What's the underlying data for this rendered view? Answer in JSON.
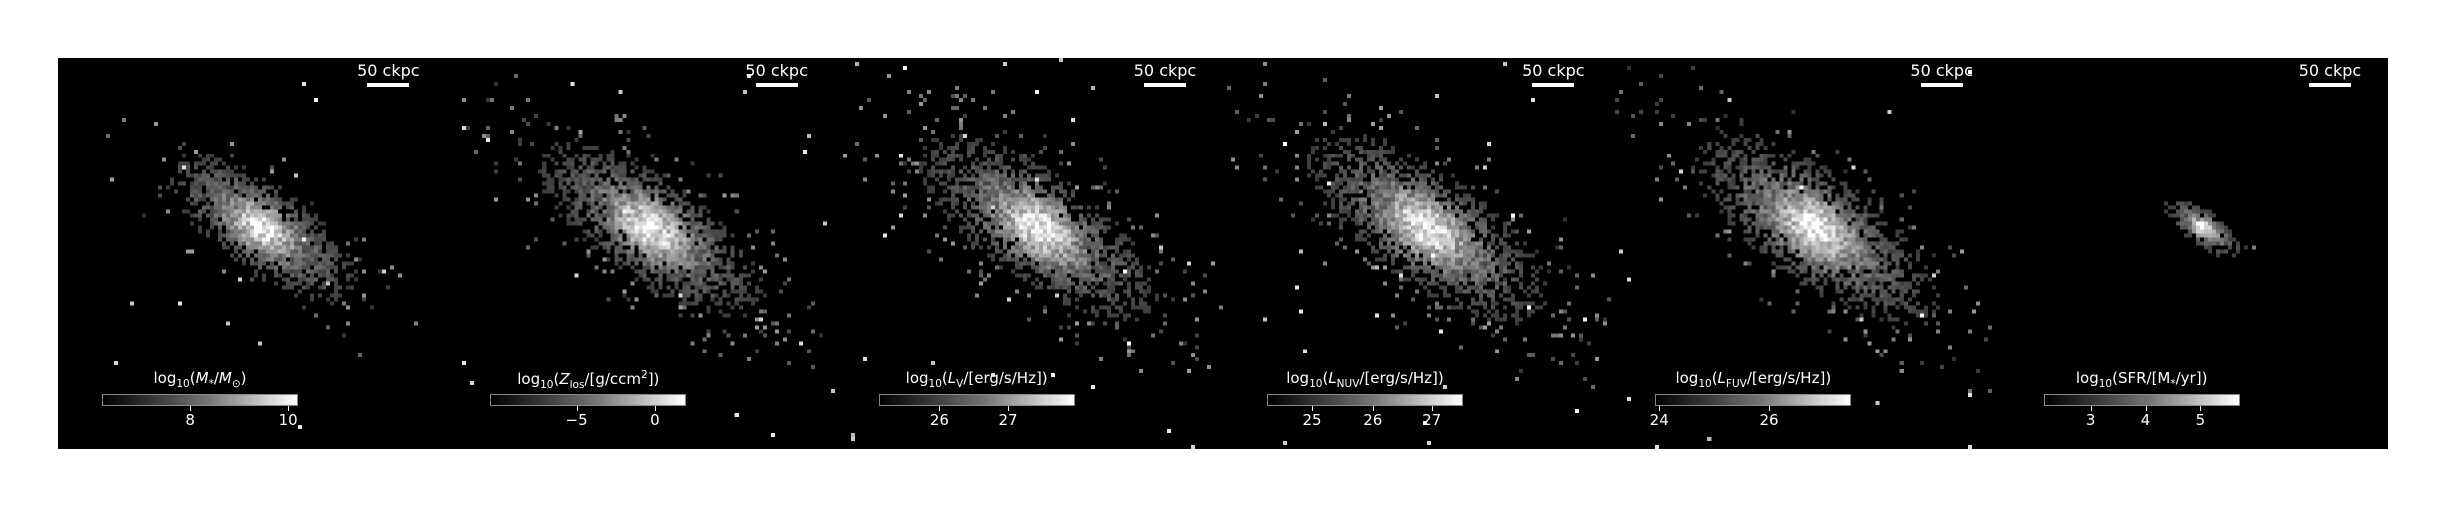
{
  "scale_bar_label": "50 ckpc",
  "panels": [
    {
      "id": "mstar",
      "label_html": "log<sub>10</sub>(<i>M</i><sub>*</sub>/<i>M</i><sub>⊙</sub>)",
      "ticks": [
        "8",
        "10"
      ],
      "tick_fracs": [
        0.45,
        0.95
      ],
      "blob_scale": 0.85,
      "noise_density": 0.45
    },
    {
      "id": "zlos",
      "label_html": "log<sub>10</sub>(<i>Z</i><sub>los</sub>/[g/ccm<sup>2</sup>])",
      "ticks": [
        "−5",
        "0"
      ],
      "tick_fracs": [
        0.44,
        0.84
      ],
      "blob_scale": 1.0,
      "noise_density": 0.75
    },
    {
      "id": "lv",
      "label_html": "log<sub>10</sub>(<i>L</i><sub>V</sub>/[erg/s/Hz])",
      "ticks": [
        "26",
        "27"
      ],
      "tick_fracs": [
        0.31,
        0.66
      ],
      "blob_scale": 1.05,
      "noise_density": 0.9
    },
    {
      "id": "lnuv",
      "label_html": "log<sub>10</sub>(<i>L</i><sub>NUV</sub>/[erg/s/Hz])",
      "ticks": [
        "25",
        "26",
        "27"
      ],
      "tick_fracs": [
        0.23,
        0.54,
        0.84
      ],
      "blob_scale": 1.08,
      "noise_density": 0.95
    },
    {
      "id": "lfuv",
      "label_html": "log<sub>10</sub>(<i>L</i><sub>FUV</sub>/[erg/s/Hz])",
      "ticks": [
        "24",
        "26"
      ],
      "tick_fracs": [
        0.02,
        0.58
      ],
      "blob_scale": 1.08,
      "noise_density": 0.95
    },
    {
      "id": "sfr",
      "label_html": "log<sub>10</sub>(SFR/[M<sub>*</sub>/yr])",
      "ticks": [
        "3",
        "4",
        "5"
      ],
      "tick_fracs": [
        0.24,
        0.52,
        0.8
      ],
      "blob_scale": 0.35,
      "noise_density": 0.12
    }
  ]
}
